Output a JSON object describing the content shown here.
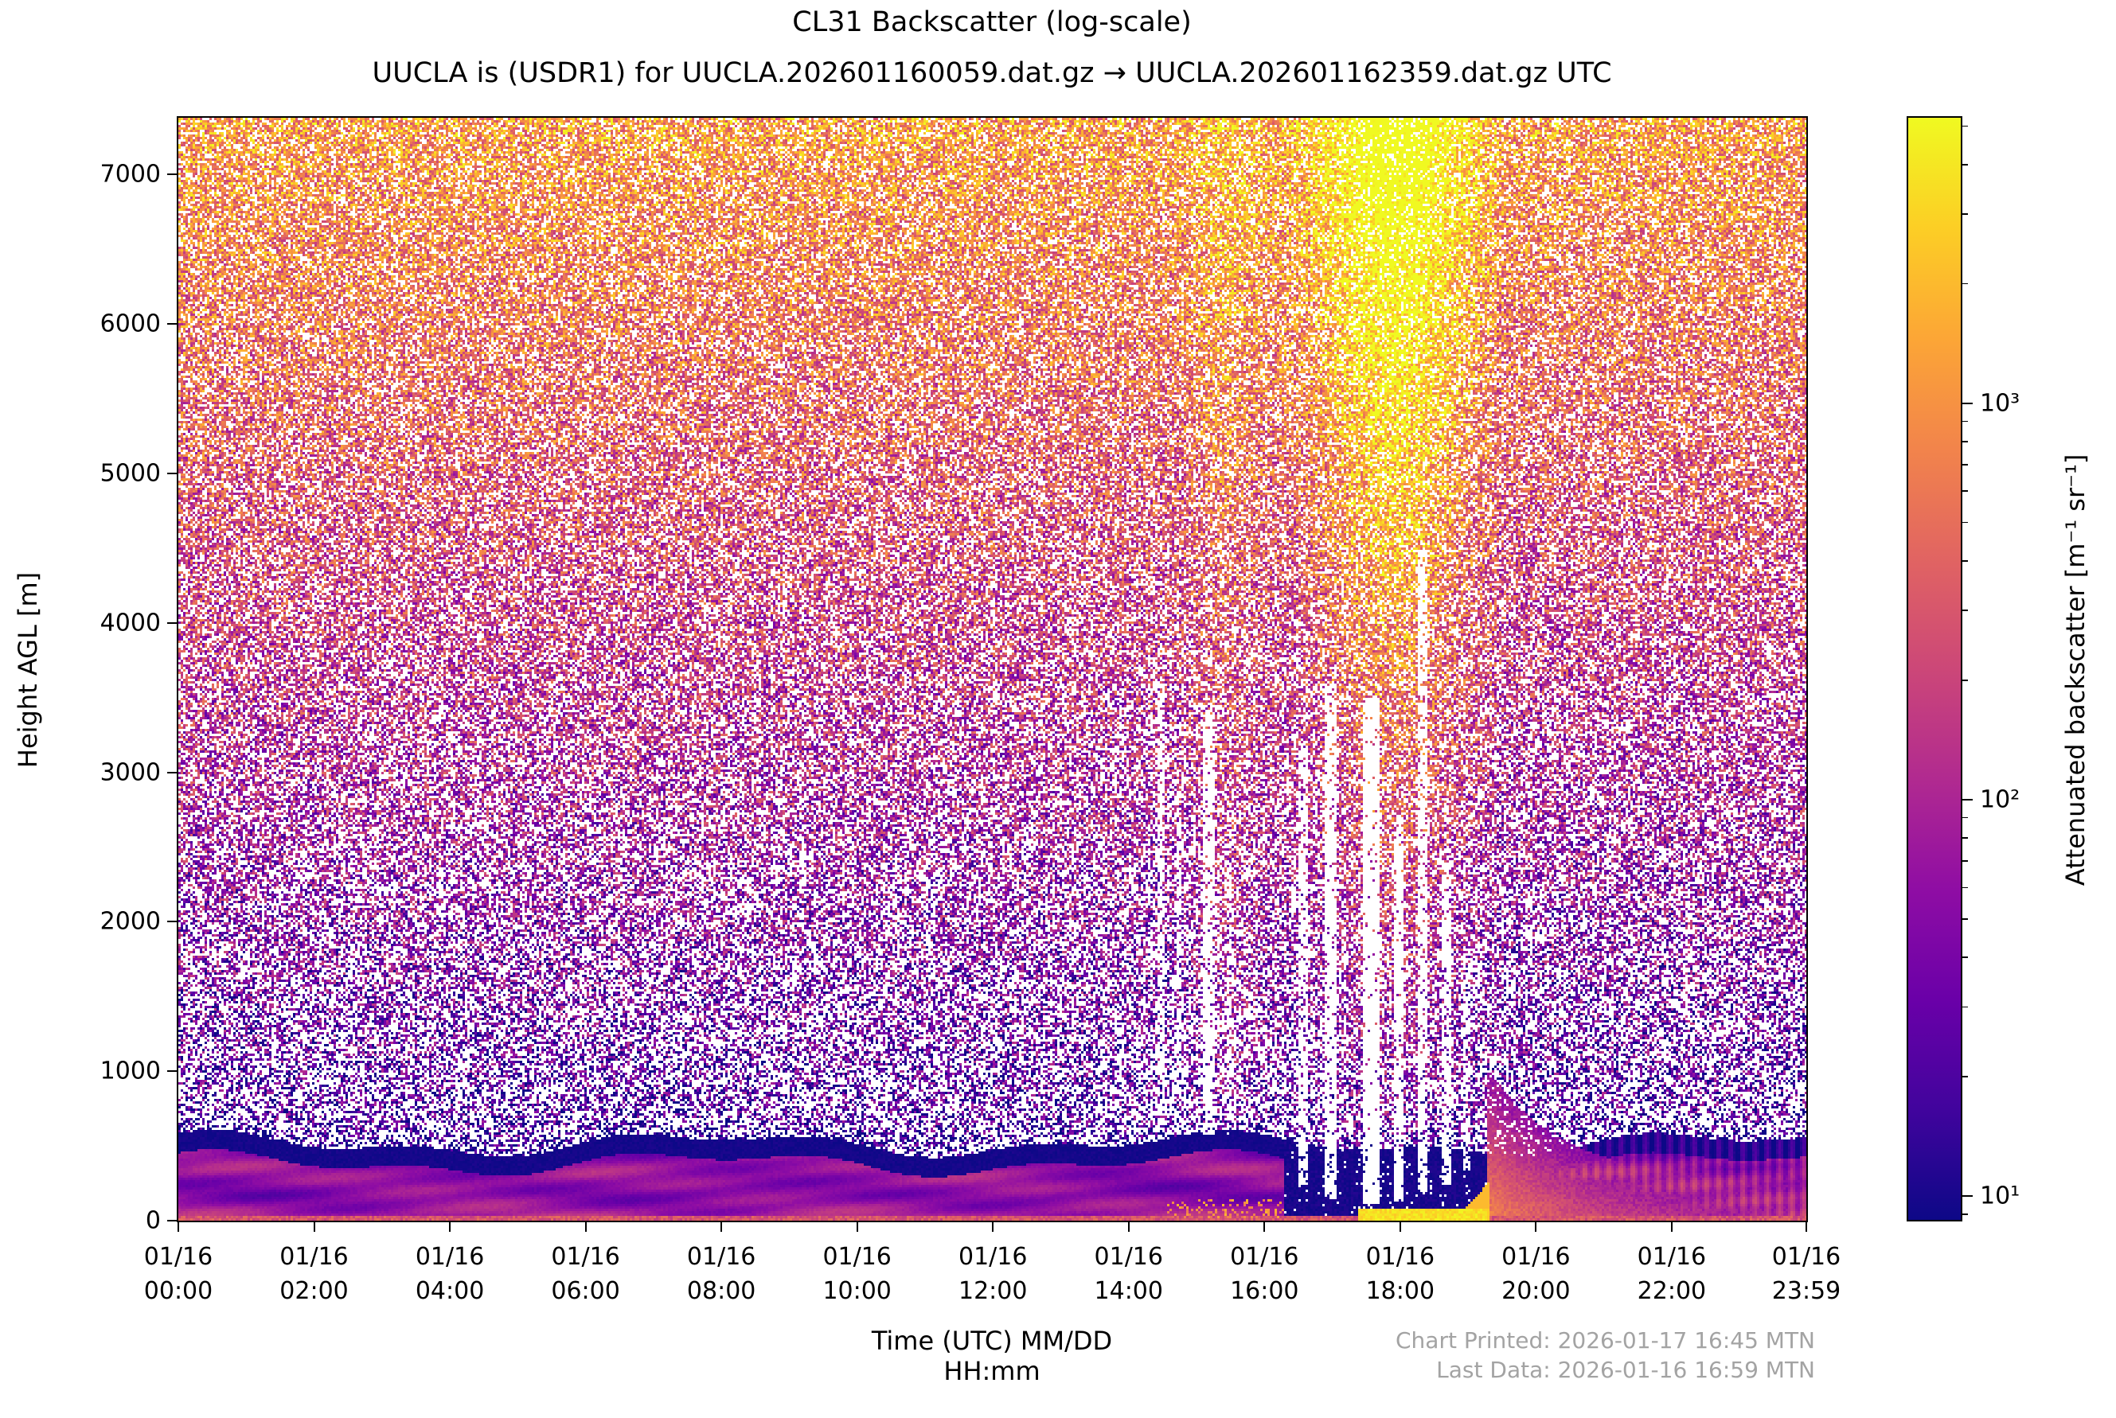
{
  "figure": {
    "title": "CL31 Backscatter (log-scale)",
    "subtitle": "UUCLA is (USDR1) for UUCLA.202601160059.dat.gz → UUCLA.202601162359.dat.gz UTC",
    "footer": {
      "printed": "Chart Printed: 2026-01-17 16:45 MTN",
      "last_data": "Last Data: 2026-01-16 16:59 MTN",
      "color": "#a3a3a3"
    }
  },
  "chart_data": {
    "type": "heatmap",
    "title": "CL31 Backscatter (log-scale)",
    "subtitle": "UUCLA is (USDR1) for UUCLA.202601160059.dat.gz → UUCLA.202601162359.dat.gz UTC",
    "xlabel_line1": "Time (UTC) MM/DD",
    "xlabel_line2": "HH:mm",
    "ylabel": "Height AGL [m]",
    "xlim_hours": [
      0,
      23.983
    ],
    "ylim_m": [
      0,
      7380
    ],
    "y_ticks_m": [
      0,
      1000,
      2000,
      3000,
      4000,
      5000,
      6000,
      7000
    ],
    "x_ticks": [
      {
        "hour": 0,
        "date": "01/16",
        "time": "00:00"
      },
      {
        "hour": 2,
        "date": "01/16",
        "time": "02:00"
      },
      {
        "hour": 4,
        "date": "01/16",
        "time": "04:00"
      },
      {
        "hour": 6,
        "date": "01/16",
        "time": "06:00"
      },
      {
        "hour": 8,
        "date": "01/16",
        "time": "08:00"
      },
      {
        "hour": 10,
        "date": "01/16",
        "time": "10:00"
      },
      {
        "hour": 12,
        "date": "01/16",
        "time": "12:00"
      },
      {
        "hour": 14,
        "date": "01/16",
        "time": "14:00"
      },
      {
        "hour": 16,
        "date": "01/16",
        "time": "16:00"
      },
      {
        "hour": 18,
        "date": "01/16",
        "time": "18:00"
      },
      {
        "hour": 20,
        "date": "01/16",
        "time": "20:00"
      },
      {
        "hour": 22,
        "date": "01/16",
        "time": "22:00"
      },
      {
        "hour": 23.983,
        "date": "01/16",
        "time": "23:59"
      }
    ],
    "colorbar": {
      "label": "Attenuated backscatter [m⁻¹ sr⁻¹]",
      "scale": "log",
      "range_log10": [
        0.94,
        3.72
      ],
      "major_ticks": [
        {
          "label": "10³",
          "log10": 3
        },
        {
          "label": "10²",
          "log10": 2
        },
        {
          "label": "10¹",
          "log10": 1
        }
      ],
      "colormap": "plasma",
      "colormap_stops": [
        {
          "pos": 0.0,
          "color": "#0d0887"
        },
        {
          "pos": 0.1,
          "color": "#41049d"
        },
        {
          "pos": 0.2,
          "color": "#6a00a8"
        },
        {
          "pos": 0.3,
          "color": "#8f0da4"
        },
        {
          "pos": 0.4,
          "color": "#b12a90"
        },
        {
          "pos": 0.5,
          "color": "#cc4778"
        },
        {
          "pos": 0.6,
          "color": "#e16462"
        },
        {
          "pos": 0.7,
          "color": "#f2844b"
        },
        {
          "pos": 0.8,
          "color": "#fca636"
        },
        {
          "pos": 0.9,
          "color": "#fcce25"
        },
        {
          "pos": 1.0,
          "color": "#f0f921"
        }
      ]
    },
    "render_params": {
      "seed": 42,
      "noise": {
        "base_log": 1.05,
        "gain_log": 2.0,
        "height_pow": 0.85,
        "jitter": 1.4,
        "white_base": 0.26,
        "white_low_gain": 0.34,
        "white_low_pow": 1.3,
        "dark_band_above_bl_m": 500,
        "dark_band_log": 0.95,
        "dark_band_gain": 1.2
      },
      "boundary_layer": {
        "base_m": 520,
        "wave1_amp": 60,
        "wave1_freq": 0.85,
        "wave1_phase": 1.2,
        "wave2_amp": 35,
        "wave2_freq": 2.1,
        "wave2_phase": 0.5,
        "interior_log": 1.6,
        "cap_log": 0.98,
        "cap_depth_m": 130,
        "ground_boost": 0.45,
        "ground_boost_depth_m": 180,
        "midband_boost": 0.25,
        "midband_center_m": 330,
        "midband_sigma_m": 120,
        "stripe_after_t": 19.3,
        "stripe_amp": 0.25,
        "stripe_freq": 35
      },
      "attenuation_zone": {
        "t_start": 16.25,
        "t_end": 19.25,
        "log": 1.0,
        "white_prob": 0.04
      },
      "plume": {
        "t_start": 15.8,
        "t_end": 19.4,
        "t_center": 17.9,
        "t_sigma": 1.1,
        "strength": 1.1,
        "lift": 0.25
      },
      "mid_brighten": {
        "t_center": 15.4,
        "t_sigma": 0.5,
        "strength": 0.3
      },
      "surface_hot_band": {
        "t_start": 17.35,
        "t_end": 19.3,
        "top_m": 95,
        "log": 3.55
      },
      "hook": {
        "t_start": 18.95,
        "t_end": 19.3,
        "top_m": 275,
        "log": 3.3
      },
      "surface_spots": {
        "t_start": 14.55,
        "t_end": 16.25,
        "top_m": 150,
        "bottom_m": 25,
        "prob": 0.22,
        "log": 3.0
      },
      "ground_line": {
        "h1_m": 32,
        "log1": 2.45,
        "h2_m": 14,
        "log2": 2.75
      },
      "haze": {
        "t_start": 19.25,
        "top_base_m": 280,
        "top_amp_m": 750,
        "top_decay_h": 1.1,
        "strength": 1.1,
        "lift": 0.2,
        "fade_h": 3.0,
        "white_cap": 0.15
      },
      "rain_streaks": [
        {
          "t": 14.45,
          "hw": 0.05,
          "top_m": 3600,
          "bot_m": 620,
          "p": 0.8
        },
        {
          "t": 14.72,
          "hw": 0.04,
          "top_m": 2900,
          "bot_m": 600,
          "p": 0.75
        },
        {
          "t": 15.15,
          "hw": 0.08,
          "top_m": 3400,
          "bot_m": 580,
          "p": 0.85
        },
        {
          "t": 15.45,
          "hw": 0.04,
          "top_m": 2400,
          "bot_m": 580,
          "p": 0.7
        },
        {
          "t": 16.55,
          "hw": 0.07,
          "top_m": 3200,
          "bot_m": 250,
          "p": 0.85
        },
        {
          "t": 16.95,
          "hw": 0.09,
          "top_m": 3600,
          "bot_m": 150,
          "p": 0.9
        },
        {
          "t": 17.55,
          "hw": 0.13,
          "top_m": 3500,
          "bot_m": 120,
          "p": 0.95
        },
        {
          "t": 17.95,
          "hw": 0.07,
          "top_m": 2700,
          "bot_m": 130,
          "p": 0.9
        },
        {
          "t": 18.3,
          "hw": 0.08,
          "top_m": 4500,
          "bot_m": 200,
          "p": 0.85
        },
        {
          "t": 18.65,
          "hw": 0.07,
          "top_m": 2400,
          "bot_m": 250,
          "p": 0.85
        },
        {
          "t": 18.95,
          "hw": 0.04,
          "top_m": 1800,
          "bot_m": 350,
          "p": 0.75
        }
      ]
    }
  }
}
